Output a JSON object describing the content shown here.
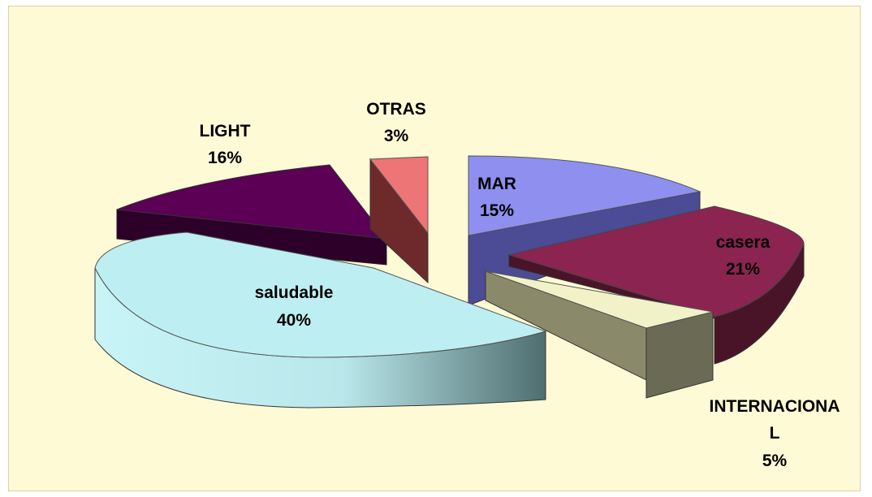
{
  "chart_data": {
    "type": "pie",
    "title": "",
    "slices": [
      {
        "name": "MAR",
        "value": 15,
        "label": "MAR",
        "value_label": "15%",
        "color": "#8f8ff0",
        "exploded": false
      },
      {
        "name": "casera",
        "value": 21,
        "label": "casera",
        "value_label": "21%",
        "color": "#8b2450",
        "exploded": false
      },
      {
        "name": "INTERNACIONAL",
        "value": 5,
        "label": "INTERNACIONA",
        "label_line2": "L",
        "value_label": "5%",
        "color": "#f2f2c8",
        "exploded": true
      },
      {
        "name": "saludable",
        "value": 40,
        "label": "saludable",
        "value_label": "40%",
        "color": "#bdeff2",
        "exploded": false
      },
      {
        "name": "LIGHT",
        "value": 16,
        "label": "LIGHT",
        "value_label": "16%",
        "color": "#5b0055",
        "exploded": false
      },
      {
        "name": "OTRAS",
        "value": 3,
        "label": "OTRAS",
        "value_label": "3%",
        "color": "#ee7575",
        "exploded": false
      }
    ],
    "legend": "none",
    "data_labels": "outside/inside with category and percentage"
  }
}
